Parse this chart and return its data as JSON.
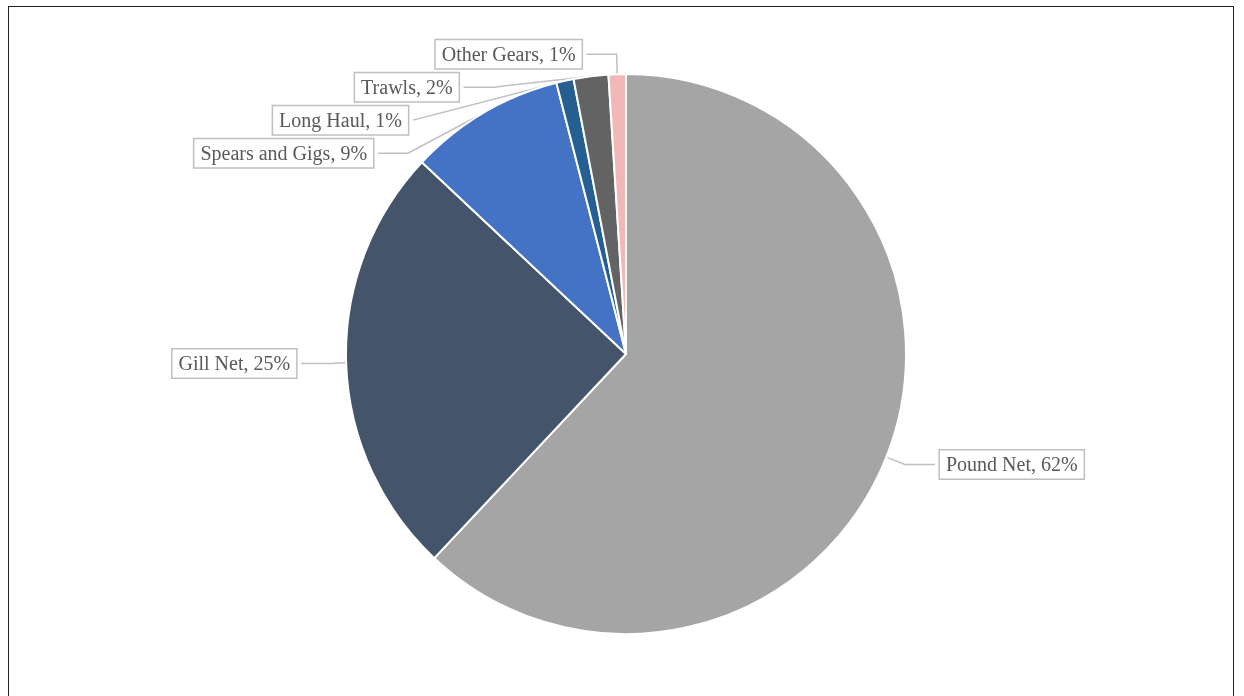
{
  "chart_data": {
    "type": "pie",
    "categories": [
      "Pound Net",
      "Gill Net",
      "Spears and Gigs",
      "Long Haul",
      "Trawls",
      "Other Gears"
    ],
    "values": [
      62,
      25,
      9,
      1,
      2,
      1
    ],
    "value_labels": [
      "62%",
      "25%",
      "9%",
      "1%",
      "2%",
      "1%"
    ],
    "colors": [
      "#a5a5a5",
      "#44546a",
      "#4472c4",
      "#255e91",
      "#636363",
      "#f2b8b8"
    ],
    "legend": false
  }
}
